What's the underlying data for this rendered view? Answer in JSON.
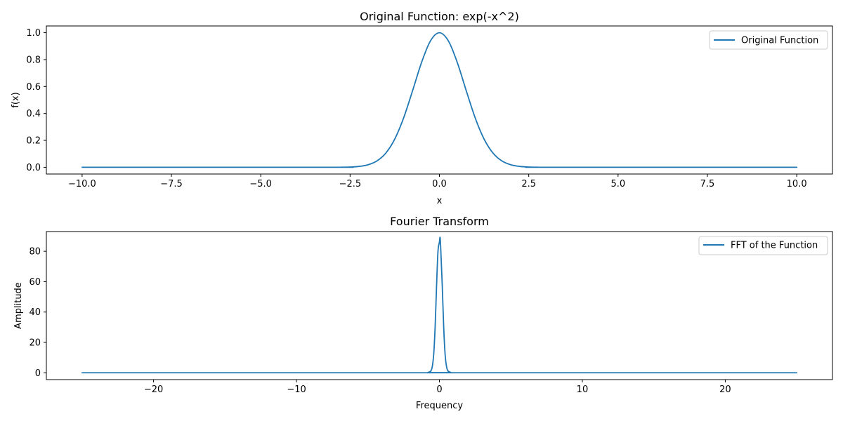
{
  "chart_data": [
    {
      "type": "line",
      "title": "Original Function: exp(-x^2)",
      "xlabel": "x",
      "ylabel": "f(x)",
      "xlim": [
        -11.0,
        11.0
      ],
      "ylim": [
        -0.05,
        1.05
      ],
      "xticks": [
        -10.0,
        -7.5,
        -5.0,
        -2.5,
        0.0,
        2.5,
        5.0,
        7.5,
        10.0
      ],
      "xtick_labels": [
        "−10.0",
        "−7.5",
        "−5.0",
        "−2.5",
        "0.0",
        "2.5",
        "5.0",
        "7.5",
        "10.0"
      ],
      "yticks": [
        0.0,
        0.2,
        0.4,
        0.6,
        0.8,
        1.0
      ],
      "ytick_labels": [
        "0.0",
        "0.2",
        "0.4",
        "0.6",
        "0.8",
        "1.0"
      ],
      "grid": false,
      "legend_position": "top-right",
      "series": [
        {
          "name": "Original Function",
          "color": "#1f77b4",
          "x": [
            -10.0,
            -3.0,
            -2.75,
            -2.5,
            -2.25,
            -2.0,
            -1.75,
            -1.5,
            -1.25,
            -1.0,
            -0.75,
            -0.5,
            -0.25,
            0.0,
            0.25,
            0.5,
            0.75,
            1.0,
            1.25,
            1.5,
            1.75,
            2.0,
            2.25,
            2.5,
            2.75,
            3.0,
            10.0
          ],
          "y": [
            0.0,
            0.0001,
            0.0005,
            0.0019,
            0.0063,
            0.0183,
            0.0468,
            0.1054,
            0.2096,
            0.3679,
            0.5698,
            0.7788,
            0.9394,
            1.0,
            0.9394,
            0.7788,
            0.5698,
            0.3679,
            0.2096,
            0.1054,
            0.0468,
            0.0183,
            0.0063,
            0.0019,
            0.0005,
            0.0001,
            0.0
          ]
        }
      ]
    },
    {
      "type": "line",
      "title": "Fourier Transform",
      "xlabel": "Frequency",
      "ylabel": "Amplitude",
      "xlim": [
        -27.5,
        27.5
      ],
      "ylim": [
        -4.5,
        93.0
      ],
      "xticks": [
        -20,
        -10,
        0,
        10,
        20
      ],
      "xtick_labels": [
        "−20",
        "−10",
        "0",
        "10",
        "20"
      ],
      "yticks": [
        0,
        20,
        40,
        60,
        80
      ],
      "ytick_labels": [
        "0",
        "20",
        "40",
        "60",
        "80"
      ],
      "grid": false,
      "legend_position": "top-right",
      "series": [
        {
          "name": "FFT of the Function",
          "color": "#1f77b4",
          "x": [
            -25.0,
            -1.0,
            -0.8,
            -0.6,
            -0.5,
            -0.4,
            -0.3,
            -0.2,
            -0.1,
            0.0,
            0.05,
            0.1,
            0.2,
            0.3,
            0.4,
            0.5,
            0.6,
            0.8,
            1.0,
            25.0
          ],
          "y": [
            0.0,
            0.0,
            0.2,
            1.2,
            4.0,
            12.0,
            30.0,
            57.0,
            80.0,
            86.0,
            89.0,
            80.0,
            57.0,
            30.0,
            12.0,
            4.0,
            1.2,
            0.2,
            0.0,
            0.0
          ]
        }
      ]
    }
  ]
}
